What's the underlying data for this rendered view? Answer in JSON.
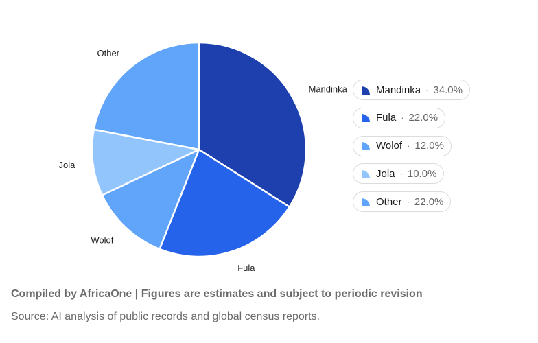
{
  "chart_data": {
    "type": "pie",
    "categories": [
      "Mandinka",
      "Fula",
      "Wolof",
      "Jola",
      "Other"
    ],
    "values": [
      34.0,
      22.0,
      12.0,
      10.0,
      22.0
    ],
    "value_labels": [
      "34.0%",
      "22.0%",
      "12.0%",
      "10.0%",
      "22.0%"
    ],
    "colors": [
      "#1e40af",
      "#2563eb",
      "#60a5fa",
      "#93c5fd",
      "#60a5fa"
    ],
    "slice_border_color": "#ffffff",
    "title": "",
    "legend_position": "right",
    "legend_separator": "·"
  },
  "footer": {
    "credit": "Compiled by AfricaOne | Figures are estimates and subject to periodic revision",
    "source": "Source: AI analysis of public records and global census reports."
  }
}
